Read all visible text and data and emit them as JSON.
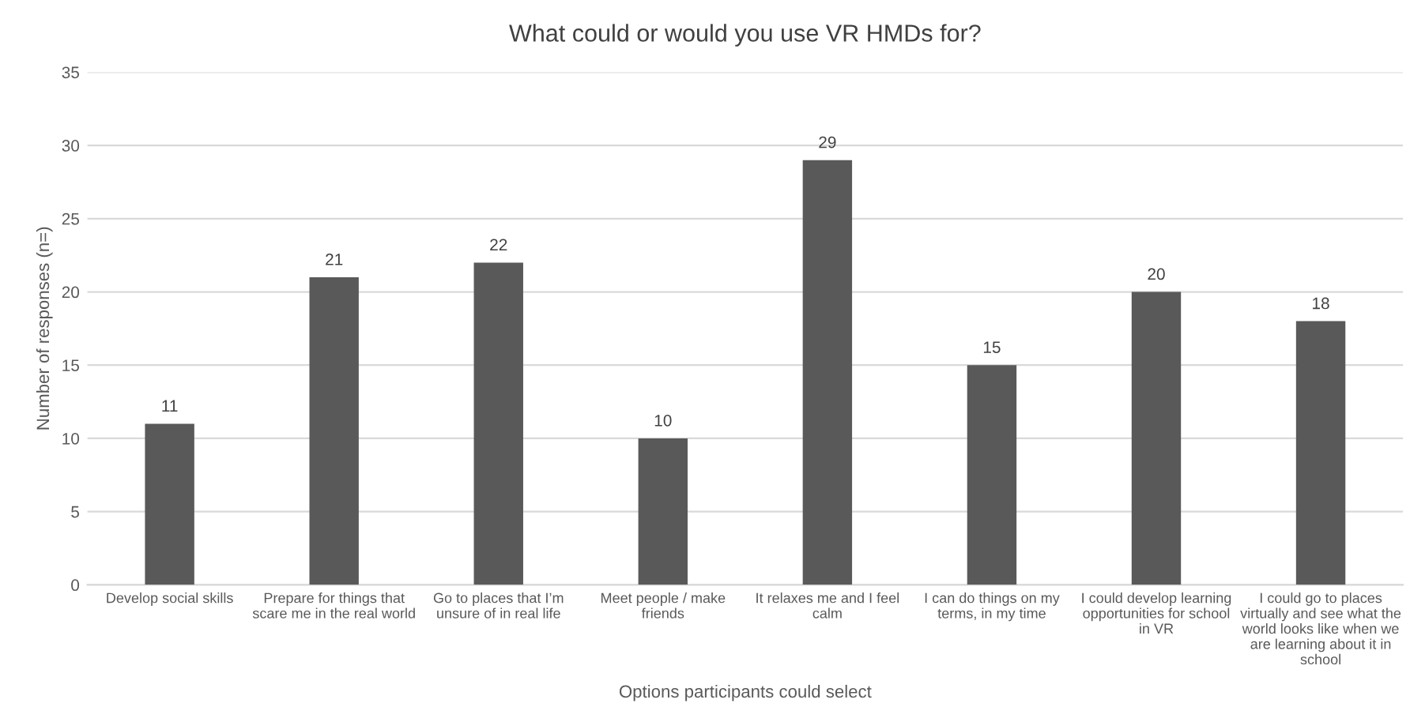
{
  "chart_data": {
    "type": "bar",
    "title": "What could or would you use VR HMDs for?",
    "xlabel": "Options participants could select",
    "ylabel": "Number of responses (n=)",
    "categories": [
      "Develop social skills",
      "Prepare for things that\nscare me in the real world",
      "Go to places that I’m\nunsure of in real life",
      "Meet people / make\nfriends",
      "It relaxes me and I feel\ncalm",
      "I can do things on my\nterms, in my time",
      "I could develop learning\nopportunities for school\nin VR",
      "I could go to places\nvirtually and see what the\nworld looks like when we\nare learning about it in\nschool"
    ],
    "values": [
      11,
      21,
      22,
      10,
      29,
      15,
      20,
      18
    ],
    "color": "#595959",
    "ylim": [
      0,
      35
    ],
    "yticks": [
      0,
      5,
      10,
      15,
      20,
      25,
      30,
      35
    ],
    "grid": "y",
    "data_labels": true
  }
}
